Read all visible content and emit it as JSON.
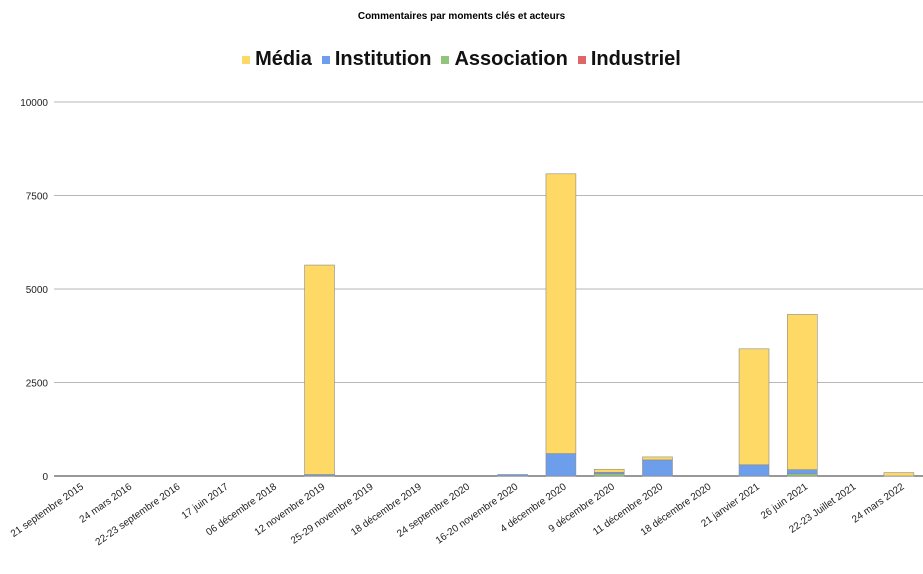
{
  "chart_data": {
    "type": "bar",
    "stacked": true,
    "title": "Commentaires par moments clés et acteurs",
    "xlabel": "",
    "ylabel": "",
    "ylim": [
      0,
      10000
    ],
    "yticks": [
      0,
      2500,
      5000,
      7500,
      10000
    ],
    "grid": true,
    "legend_position": "top-center",
    "categories": [
      "21 septembre 2015",
      "24 mars 2016",
      "22-23 septembre 2016",
      "17 juin 2017",
      "06 décembre 2018",
      "12 novembre 2019",
      "25-29 novembre 2019",
      "18 décembre 2019",
      "24 septembre 2020",
      "16-20 novembre 2020",
      "4 décembre 2020",
      "9 décembre 2020",
      "11 décembre 2020",
      "18 décembre 2020",
      "21 janvier 2021",
      "26 juin 2021",
      "22-23 Juillet 2021",
      "24 mars 2022"
    ],
    "series": [
      {
        "name": "Industriel",
        "color": "#e06666",
        "values": [
          0,
          0,
          0,
          0,
          0,
          0,
          0,
          0,
          0,
          0,
          0,
          0,
          0,
          0,
          0,
          0,
          0,
          0
        ]
      },
      {
        "name": "Association",
        "color": "#93c47d",
        "values": [
          0,
          0,
          0,
          0,
          0,
          0,
          0,
          0,
          0,
          0,
          0,
          60,
          0,
          0,
          0,
          60,
          0,
          0
        ]
      },
      {
        "name": "Institution",
        "color": "#6d9eeb",
        "values": [
          0,
          0,
          0,
          0,
          0,
          40,
          0,
          0,
          0,
          40,
          600,
          40,
          430,
          0,
          300,
          110,
          0,
          0
        ]
      },
      {
        "name": "Média",
        "color": "#ffd966",
        "values": [
          0,
          0,
          0,
          0,
          0,
          5600,
          0,
          0,
          0,
          0,
          7480,
          80,
          80,
          0,
          3100,
          4150,
          0,
          90
        ]
      }
    ]
  }
}
